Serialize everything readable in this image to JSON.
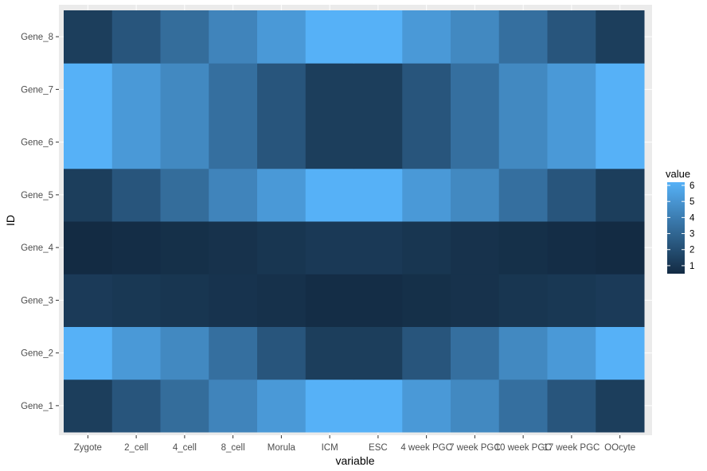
{
  "chart_data": {
    "type": "heatmap",
    "xlabel": "variable",
    "ylabel": "ID",
    "x_categories": [
      "Zygote",
      "2_cell",
      "4_cell",
      "8_cell",
      "Morula",
      "ICM",
      "ESC",
      "4 week PGC",
      "7 week PGC",
      "10 week PGC",
      "17 week PGC",
      "OOcyte"
    ],
    "y_categories": [
      "Gene_1",
      "Gene_2",
      "Gene_3",
      "Gene_4",
      "Gene_5",
      "Gene_6",
      "Gene_7",
      "Gene_8"
    ],
    "values": [
      [
        1.3,
        2.3,
        3.3,
        4.3,
        5.2,
        6.2,
        6.2,
        5.2,
        4.5,
        3.4,
        2.3,
        1.3
      ],
      [
        6.2,
        5.2,
        4.5,
        3.4,
        2.3,
        1.3,
        1.3,
        2.3,
        3.4,
        4.5,
        5.2,
        6.2
      ],
      [
        1.15,
        1.05,
        0.95,
        0.85,
        0.75,
        0.6,
        0.6,
        0.7,
        0.8,
        0.95,
        1.05,
        1.15
      ],
      [
        0.5,
        0.6,
        0.7,
        0.8,
        0.95,
        1.1,
        1.1,
        0.95,
        0.8,
        0.7,
        0.6,
        0.5
      ],
      [
        1.3,
        2.3,
        3.3,
        4.3,
        5.2,
        6.2,
        6.2,
        5.2,
        4.5,
        3.4,
        2.3,
        1.3
      ],
      [
        6.2,
        5.2,
        4.5,
        3.4,
        2.3,
        1.3,
        1.3,
        2.3,
        3.4,
        4.5,
        5.2,
        6.2
      ],
      [
        6.2,
        5.2,
        4.5,
        3.4,
        2.3,
        1.3,
        1.3,
        2.3,
        3.4,
        4.5,
        5.2,
        6.2
      ],
      [
        1.3,
        2.3,
        3.3,
        4.3,
        5.2,
        6.2,
        6.2,
        5.2,
        4.5,
        3.4,
        2.3,
        1.3
      ]
    ],
    "legend": {
      "title": "value",
      "position": "right",
      "breaks": [
        1,
        2,
        3,
        4,
        5,
        6
      ],
      "min": 0.5,
      "max": 6.2,
      "low_color": "#132B43",
      "high_color": "#56B1F7"
    },
    "grid": true,
    "panel_background": "#EBEBEB"
  }
}
